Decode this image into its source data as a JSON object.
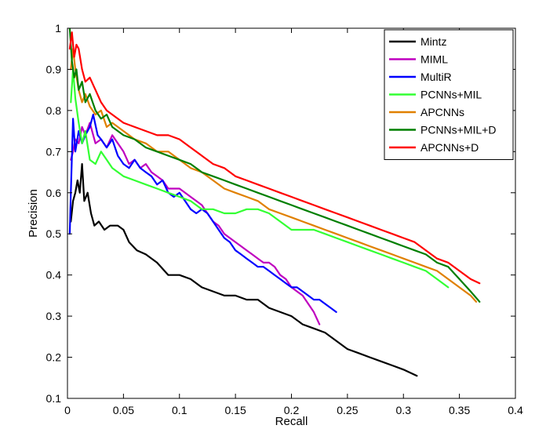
{
  "chart_data": {
    "type": "line",
    "title": "",
    "xlabel": "Recall",
    "ylabel": "Precision",
    "xlim": [
      0,
      0.4
    ],
    "ylim": [
      0.1,
      1
    ],
    "xticks": [
      0,
      0.05,
      0.1,
      0.15,
      0.2,
      0.25,
      0.3,
      0.35,
      0.4
    ],
    "xtick_labels": [
      "0",
      "0.05",
      "0.1",
      "0.15",
      "0.2",
      "0.25",
      "0.3",
      "0.35",
      "0.4"
    ],
    "yticks": [
      0.1,
      0.2,
      0.3,
      0.4,
      0.5,
      0.6,
      0.7,
      0.8,
      0.9,
      1
    ],
    "ytick_labels": [
      "0.1",
      "0.2",
      "0.3",
      "0.4",
      "0.5",
      "0.6",
      "0.7",
      "0.8",
      "0.9",
      "1"
    ],
    "grid": false,
    "legend_position": "top-right",
    "series": [
      {
        "name": "Mintz",
        "color": "#000000",
        "x": [
          0.003,
          0.005,
          0.007,
          0.009,
          0.011,
          0.013,
          0.015,
          0.018,
          0.021,
          0.024,
          0.028,
          0.033,
          0.038,
          0.045,
          0.05,
          0.055,
          0.062,
          0.07,
          0.08,
          0.09,
          0.1,
          0.11,
          0.12,
          0.13,
          0.14,
          0.15,
          0.16,
          0.17,
          0.18,
          0.19,
          0.2,
          0.21,
          0.22,
          0.23,
          0.24,
          0.25,
          0.26,
          0.27,
          0.28,
          0.29,
          0.3,
          0.312
        ],
        "y": [
          0.53,
          0.58,
          0.6,
          0.63,
          0.6,
          0.67,
          0.58,
          0.6,
          0.55,
          0.52,
          0.53,
          0.51,
          0.52,
          0.52,
          0.51,
          0.48,
          0.46,
          0.45,
          0.43,
          0.4,
          0.4,
          0.39,
          0.37,
          0.36,
          0.35,
          0.35,
          0.34,
          0.34,
          0.32,
          0.31,
          0.3,
          0.28,
          0.27,
          0.26,
          0.24,
          0.22,
          0.21,
          0.2,
          0.19,
          0.18,
          0.17,
          0.155
        ]
      },
      {
        "name": "MIML",
        "color": "#bf00bf",
        "x": [
          0.003,
          0.005,
          0.007,
          0.01,
          0.013,
          0.016,
          0.02,
          0.025,
          0.03,
          0.035,
          0.04,
          0.045,
          0.05,
          0.055,
          0.06,
          0.065,
          0.07,
          0.075,
          0.08,
          0.085,
          0.09,
          0.095,
          0.1,
          0.105,
          0.11,
          0.115,
          0.12,
          0.125,
          0.13,
          0.135,
          0.14,
          0.145,
          0.15,
          0.155,
          0.16,
          0.165,
          0.17,
          0.175,
          0.18,
          0.185,
          0.19,
          0.195,
          0.2,
          0.205,
          0.21,
          0.215,
          0.22,
          0.225
        ],
        "y": [
          0.68,
          0.7,
          0.73,
          0.72,
          0.76,
          0.74,
          0.77,
          0.72,
          0.73,
          0.71,
          0.74,
          0.72,
          0.7,
          0.67,
          0.68,
          0.66,
          0.67,
          0.65,
          0.64,
          0.63,
          0.61,
          0.61,
          0.61,
          0.6,
          0.59,
          0.58,
          0.57,
          0.55,
          0.53,
          0.52,
          0.5,
          0.49,
          0.48,
          0.47,
          0.46,
          0.45,
          0.44,
          0.43,
          0.43,
          0.42,
          0.4,
          0.39,
          0.37,
          0.36,
          0.35,
          0.33,
          0.31,
          0.28
        ]
      },
      {
        "name": "MultiR",
        "color": "#0000ff",
        "x": [
          0.002,
          0.003,
          0.005,
          0.007,
          0.01,
          0.013,
          0.016,
          0.02,
          0.023,
          0.027,
          0.03,
          0.035,
          0.04,
          0.045,
          0.05,
          0.055,
          0.06,
          0.065,
          0.07,
          0.075,
          0.08,
          0.085,
          0.09,
          0.095,
          0.1,
          0.105,
          0.11,
          0.115,
          0.12,
          0.125,
          0.13,
          0.135,
          0.14,
          0.145,
          0.15,
          0.155,
          0.16,
          0.165,
          0.17,
          0.175,
          0.18,
          0.185,
          0.19,
          0.195,
          0.2,
          0.205,
          0.21,
          0.215,
          0.22,
          0.225,
          0.23,
          0.235,
          0.24
        ],
        "y": [
          0.5,
          0.6,
          0.78,
          0.7,
          0.75,
          0.72,
          0.74,
          0.76,
          0.79,
          0.74,
          0.73,
          0.71,
          0.73,
          0.69,
          0.67,
          0.66,
          0.68,
          0.66,
          0.65,
          0.64,
          0.62,
          0.63,
          0.6,
          0.59,
          0.6,
          0.58,
          0.56,
          0.55,
          0.56,
          0.55,
          0.53,
          0.51,
          0.49,
          0.48,
          0.46,
          0.45,
          0.44,
          0.43,
          0.42,
          0.42,
          0.41,
          0.4,
          0.39,
          0.38,
          0.37,
          0.37,
          0.36,
          0.35,
          0.34,
          0.34,
          0.33,
          0.32,
          0.31
        ]
      },
      {
        "name": "PCNNs+MIL",
        "color": "#33ff33",
        "x": [
          0.003,
          0.005,
          0.007,
          0.01,
          0.013,
          0.016,
          0.02,
          0.025,
          0.03,
          0.035,
          0.04,
          0.05,
          0.06,
          0.07,
          0.08,
          0.09,
          0.1,
          0.11,
          0.12,
          0.13,
          0.14,
          0.15,
          0.16,
          0.17,
          0.18,
          0.19,
          0.2,
          0.21,
          0.22,
          0.23,
          0.24,
          0.25,
          0.26,
          0.27,
          0.28,
          0.29,
          0.3,
          0.31,
          0.32,
          0.33,
          0.34
        ],
        "y": [
          0.82,
          0.9,
          0.83,
          0.77,
          0.72,
          0.75,
          0.68,
          0.67,
          0.7,
          0.68,
          0.66,
          0.64,
          0.63,
          0.62,
          0.61,
          0.6,
          0.59,
          0.58,
          0.56,
          0.56,
          0.55,
          0.55,
          0.56,
          0.56,
          0.55,
          0.53,
          0.51,
          0.51,
          0.51,
          0.5,
          0.49,
          0.48,
          0.47,
          0.46,
          0.45,
          0.44,
          0.43,
          0.42,
          0.41,
          0.39,
          0.37
        ]
      },
      {
        "name": "APCNNs",
        "color": "#e08000",
        "x": [
          0.003,
          0.005,
          0.007,
          0.01,
          0.013,
          0.016,
          0.02,
          0.025,
          0.03,
          0.035,
          0.04,
          0.05,
          0.06,
          0.07,
          0.08,
          0.09,
          0.1,
          0.11,
          0.12,
          0.13,
          0.14,
          0.15,
          0.16,
          0.17,
          0.18,
          0.19,
          0.2,
          0.21,
          0.22,
          0.23,
          0.24,
          0.25,
          0.26,
          0.27,
          0.28,
          0.29,
          0.3,
          0.31,
          0.32,
          0.33,
          0.34,
          0.35,
          0.36,
          0.365
        ],
        "y": [
          0.9,
          0.95,
          0.9,
          0.85,
          0.82,
          0.84,
          0.81,
          0.79,
          0.8,
          0.76,
          0.77,
          0.75,
          0.73,
          0.72,
          0.7,
          0.7,
          0.68,
          0.66,
          0.65,
          0.63,
          0.61,
          0.6,
          0.59,
          0.58,
          0.56,
          0.55,
          0.54,
          0.53,
          0.52,
          0.51,
          0.5,
          0.49,
          0.48,
          0.47,
          0.46,
          0.45,
          0.44,
          0.43,
          0.42,
          0.41,
          0.39,
          0.37,
          0.35,
          0.335
        ]
      },
      {
        "name": "PCNNs+MIL+D",
        "color": "#007f00",
        "x": [
          0.002,
          0.004,
          0.006,
          0.008,
          0.01,
          0.013,
          0.016,
          0.02,
          0.025,
          0.03,
          0.035,
          0.04,
          0.05,
          0.06,
          0.07,
          0.08,
          0.09,
          0.1,
          0.11,
          0.12,
          0.13,
          0.14,
          0.15,
          0.16,
          0.17,
          0.18,
          0.19,
          0.2,
          0.21,
          0.22,
          0.23,
          0.24,
          0.25,
          0.26,
          0.27,
          0.28,
          0.29,
          0.3,
          0.31,
          0.32,
          0.33,
          0.34,
          0.35,
          0.36,
          0.368
        ],
        "y": [
          1.0,
          0.92,
          0.88,
          0.9,
          0.85,
          0.87,
          0.82,
          0.84,
          0.8,
          0.78,
          0.79,
          0.76,
          0.74,
          0.73,
          0.71,
          0.7,
          0.69,
          0.68,
          0.67,
          0.65,
          0.64,
          0.63,
          0.62,
          0.61,
          0.6,
          0.59,
          0.58,
          0.57,
          0.56,
          0.55,
          0.54,
          0.53,
          0.52,
          0.51,
          0.5,
          0.49,
          0.48,
          0.47,
          0.46,
          0.45,
          0.43,
          0.42,
          0.39,
          0.36,
          0.335
        ]
      },
      {
        "name": "APCNNs+D",
        "color": "#ff0000",
        "x": [
          0.002,
          0.004,
          0.006,
          0.008,
          0.01,
          0.013,
          0.016,
          0.02,
          0.025,
          0.03,
          0.035,
          0.04,
          0.05,
          0.06,
          0.07,
          0.08,
          0.09,
          0.1,
          0.11,
          0.12,
          0.13,
          0.14,
          0.15,
          0.16,
          0.17,
          0.18,
          0.19,
          0.2,
          0.21,
          0.22,
          0.23,
          0.24,
          0.25,
          0.26,
          0.27,
          0.28,
          0.29,
          0.3,
          0.31,
          0.32,
          0.33,
          0.34,
          0.35,
          0.36,
          0.368
        ],
        "y": [
          0.95,
          0.99,
          0.93,
          0.96,
          0.95,
          0.9,
          0.87,
          0.88,
          0.85,
          0.82,
          0.8,
          0.79,
          0.77,
          0.76,
          0.75,
          0.74,
          0.74,
          0.73,
          0.71,
          0.69,
          0.67,
          0.66,
          0.64,
          0.63,
          0.62,
          0.61,
          0.6,
          0.59,
          0.58,
          0.57,
          0.56,
          0.55,
          0.54,
          0.53,
          0.52,
          0.51,
          0.5,
          0.49,
          0.48,
          0.46,
          0.44,
          0.43,
          0.41,
          0.39,
          0.38
        ]
      }
    ]
  }
}
